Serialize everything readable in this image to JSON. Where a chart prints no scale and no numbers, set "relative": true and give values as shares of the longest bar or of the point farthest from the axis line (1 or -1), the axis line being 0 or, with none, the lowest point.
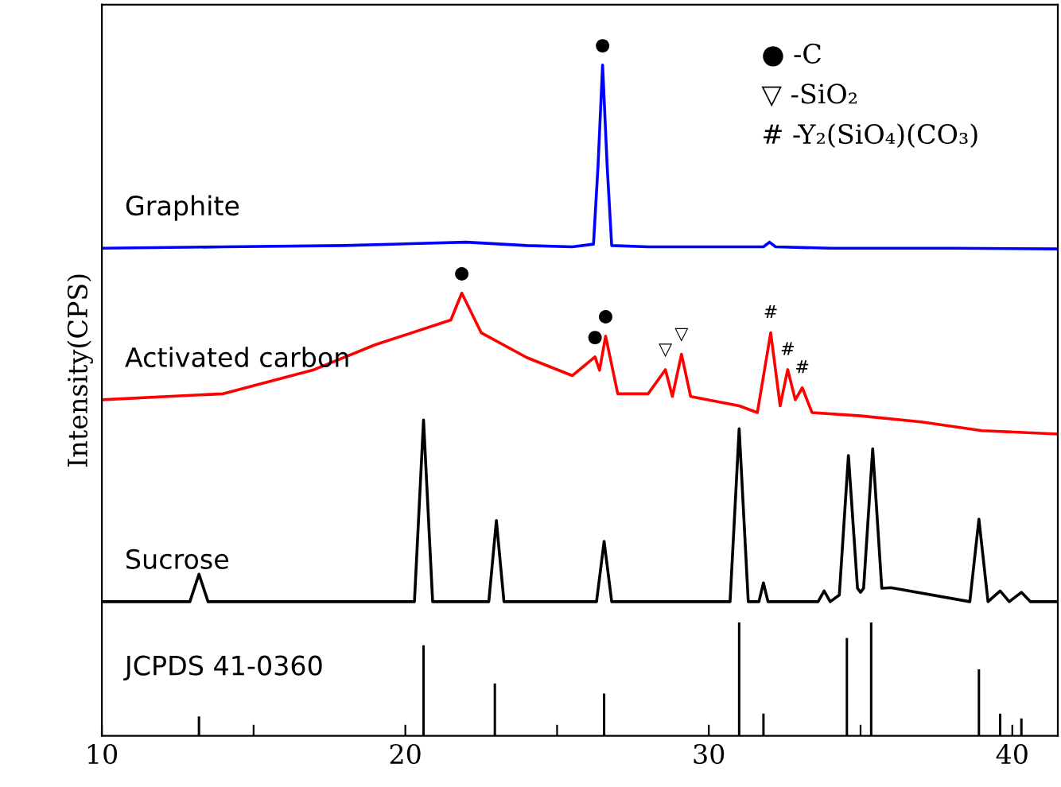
{
  "chart_data": {
    "type": "line",
    "relative": true,
    "ylabel": "Intensity(CPS)",
    "xlim": [
      10,
      41.5
    ],
    "xticks": [
      10,
      {
        "value": 15,
        "label": null
      },
      20,
      {
        "value": 25,
        "label": null
      },
      30,
      {
        "value": 35,
        "label": null
      },
      40
    ],
    "grid": false,
    "legend": false,
    "line_style": "solid",
    "marker": "none",
    "series": [
      {
        "name": "Graphite",
        "color": "#0000ff",
        "x": [
          10,
          14,
          18,
          22,
          24,
          25.5,
          26.2,
          26.35,
          26.5,
          26.65,
          26.8,
          28,
          30,
          31.8,
          32,
          32.2,
          34,
          38,
          41.5
        ],
        "values": [
          0.727,
          0.729,
          0.731,
          0.736,
          0.731,
          0.729,
          0.733,
          0.85,
          1.0,
          0.85,
          0.731,
          0.729,
          0.729,
          0.729,
          0.736,
          0.729,
          0.727,
          0.727,
          0.726
        ]
      },
      {
        "name": "Activated carbon",
        "color": "#ff0000",
        "x": [
          10,
          14,
          17,
          19,
          21.5,
          21.86,
          22.5,
          24,
          25.5,
          26.25,
          26.4,
          26.6,
          27,
          28,
          28.57,
          28.8,
          29.1,
          29.4,
          31,
          31.6,
          32.04,
          32.35,
          32.6,
          32.85,
          33.08,
          33.4,
          35,
          37,
          39,
          41.5
        ],
        "values": [
          0.501,
          0.51,
          0.546,
          0.583,
          0.62,
          0.66,
          0.601,
          0.564,
          0.537,
          0.565,
          0.545,
          0.596,
          0.51,
          0.51,
          0.546,
          0.506,
          0.569,
          0.506,
          0.492,
          0.482,
          0.601,
          0.492,
          0.546,
          0.501,
          0.519,
          0.482,
          0.477,
          0.468,
          0.455,
          0.45
        ]
      },
      {
        "name": "Sucrose",
        "color": "#000000",
        "x": [
          10,
          12.9,
          13.2,
          13.5,
          20.3,
          20.6,
          20.9,
          22.75,
          23.0,
          23.25,
          26.3,
          26.55,
          26.8,
          30.7,
          31.0,
          31.3,
          31.65,
          31.8,
          31.95,
          33.6,
          33.8,
          34.0,
          34.3,
          34.6,
          34.9,
          35.0,
          35.1,
          35.4,
          35.7,
          36.0,
          38.6,
          38.9,
          39.2,
          39.6,
          39.9,
          40.3,
          40.6,
          41.5
        ],
        "values": [
          0.2,
          0.2,
          0.241,
          0.2,
          0.2,
          0.471,
          0.2,
          0.2,
          0.321,
          0.2,
          0.2,
          0.29,
          0.2,
          0.2,
          0.458,
          0.2,
          0.2,
          0.228,
          0.2,
          0.2,
          0.216,
          0.2,
          0.21,
          0.418,
          0.22,
          0.214,
          0.22,
          0.428,
          0.22,
          0.221,
          0.2,
          0.323,
          0.2,
          0.216,
          0.2,
          0.214,
          0.2,
          0.2
        ]
      },
      {
        "name": "JCPDS 41-0360",
        "color": "#000000",
        "type": "bar",
        "x": [
          13.2,
          20.6,
          22.95,
          26.55,
          31.0,
          31.8,
          34.55,
          35.35,
          38.9,
          39.6,
          40.3
        ],
        "values": [
          0.029,
          0.135,
          0.078,
          0.063,
          0.169,
          0.033,
          0.146,
          0.169,
          0.099,
          0.033,
          0.026
        ]
      }
    ],
    "annotations": [
      {
        "text": "●",
        "x": 26.5,
        "y": 1.0
      },
      {
        "text": "●",
        "x": 21.86,
        "y": 0.66
      },
      {
        "text": "●",
        "x": 26.25,
        "y": 0.565
      },
      {
        "text": "●",
        "x": 26.6,
        "y": 0.596
      },
      {
        "text": "▽",
        "x": 28.57,
        "y": 0.546
      },
      {
        "text": "▽",
        "x": 29.1,
        "y": 0.569
      },
      {
        "text": "#",
        "x": 32.04,
        "y": 0.601
      },
      {
        "text": "#",
        "x": 32.6,
        "y": 0.546
      },
      {
        "text": "#",
        "x": 33.08,
        "y": 0.519
      },
      "● -C",
      "▽ -SiO₂",
      "# -Y₂(SiO₄)(CO₃)"
    ]
  }
}
